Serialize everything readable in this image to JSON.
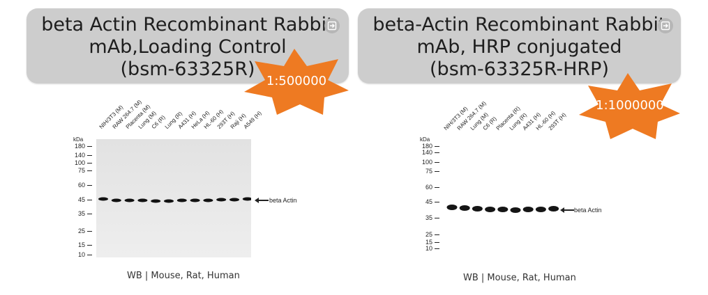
{
  "left_panel": {
    "title_lines": [
      "beta Actin Recombinant Rabbit",
      "mAb,Loading Control",
      "(bsm-63325R)"
    ],
    "dilution": "1:500000",
    "kda_label": "kDa",
    "mw_markers": [
      "180",
      "140",
      "100",
      "75",
      "60",
      "45",
      "35",
      "25",
      "15",
      "10"
    ],
    "lanes": [
      "NIH/3T3 (M)",
      "RAW 264.7 (M)",
      "Placenta (M)",
      "Lung (M)",
      "C6 (R)",
      "Lung (R)",
      "A431 (H)",
      "HeLa (H)",
      "HL-60 (H)",
      "293T (H)",
      "Raji (H)",
      "A549 (H)"
    ],
    "band_label": "beta Actin",
    "caption": "WB | Mouse, Rat, Human"
  },
  "right_panel": {
    "title_lines": [
      "beta-Actin Recombinant Rabbit",
      "mAb, HRP conjugated",
      "(bsm-63325R-HRP)"
    ],
    "dilution": "1:1000000",
    "kda_label": "kDa",
    "mw_markers": [
      "180",
      "140",
      "100",
      "75",
      "60",
      "45",
      "35",
      "25",
      "15",
      "10"
    ],
    "lanes": [
      "NIH/3T3 (M)",
      "RAW 264.7 (M)",
      "Lung (M)",
      "C6 (R)",
      "Placenta (R)",
      "Lung (R)",
      "A431 (H)",
      "HL-60 (H)",
      "293T (H)"
    ],
    "band_label": "beta Actin",
    "caption": "WB | Mouse, Rat, Human"
  },
  "colors": {
    "card": "#cdcdcd",
    "star": "#ee7a22",
    "title": "#1e1e1e"
  },
  "icons": [
    "exit-icon"
  ]
}
